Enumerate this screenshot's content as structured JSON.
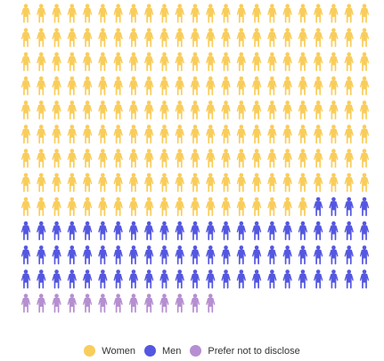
{
  "chart_data": {
    "type": "waffle",
    "unit": "person icon",
    "rows": 13,
    "columns": 23,
    "series": [
      {
        "name": "Women",
        "value": 203,
        "color": "#F9CD5B"
      },
      {
        "name": "Men",
        "value": 73,
        "color": "#5457E0"
      },
      {
        "name": "Prefer not to disclose",
        "value": 13,
        "color": "#B58FD1"
      }
    ],
    "legend_position": "bottom-center"
  }
}
